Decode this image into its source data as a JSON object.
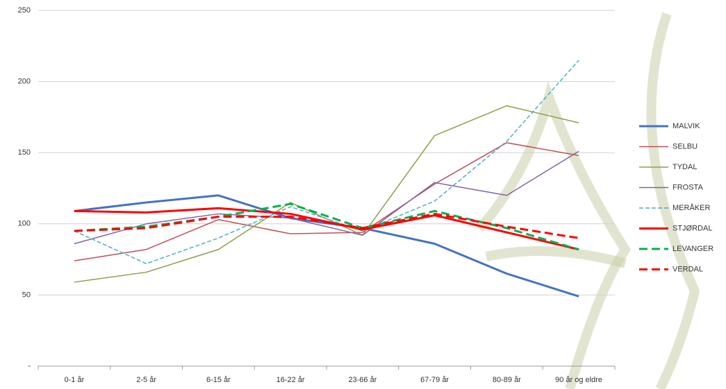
{
  "chart_data": {
    "type": "line",
    "categories": [
      "0-1 år",
      "2-5 år",
      "6-15 år",
      "16-22 år",
      "23-66 år",
      "67-79 år",
      "80-89 år",
      "90 år og eldre"
    ],
    "ylim": [
      0,
      250
    ],
    "yticks": [
      {
        "value": 0,
        "label": "-"
      },
      50,
      100,
      150,
      200,
      250
    ],
    "grid": true,
    "legend": "right",
    "series": [
      {
        "name": "MALVIK",
        "color": "#4472c4",
        "line_width": 3,
        "dash": "solid",
        "values": [
          109,
          115,
          120,
          104,
          97,
          86,
          65,
          49
        ]
      },
      {
        "name": "SELBU",
        "color": "#c0504d",
        "line_width": 1.5,
        "dash": "solid",
        "values": [
          74,
          82,
          103,
          93,
          94,
          128,
          157,
          148
        ]
      },
      {
        "name": "TYDAL",
        "color": "#8a9f4a",
        "line_width": 1.5,
        "dash": "solid",
        "values": [
          59,
          66,
          82,
          115,
          92,
          162,
          183,
          171
        ]
      },
      {
        "name": "FROSTA",
        "color": "#8064a2",
        "line_width": 1.5,
        "dash": "solid",
        "values": [
          86,
          100,
          107,
          104,
          92,
          129,
          120,
          151
        ]
      },
      {
        "name": "MERÅKER",
        "color": "#4bacc6",
        "line_width": 1.5,
        "dash": "dashed",
        "values": [
          95,
          72,
          90,
          112,
          95,
          116,
          158,
          215
        ]
      },
      {
        "name": "STJØRDAL",
        "color": "#ff0000",
        "line_width": 3,
        "dash": "solid",
        "values": [
          109,
          108,
          111,
          107,
          96,
          106,
          94,
          82
        ]
      },
      {
        "name": "LEVANGER",
        "color": "#00b050",
        "line_width": 3,
        "dash": "dashed",
        "values": [
          95,
          98,
          105,
          114,
          97,
          109,
          97,
          82
        ]
      },
      {
        "name": "VERDAL",
        "color": "#ff0000",
        "line_width": 3,
        "dash": "dashed",
        "values": [
          95,
          97,
          105,
          105,
          97,
          107,
          98,
          90
        ]
      }
    ]
  }
}
